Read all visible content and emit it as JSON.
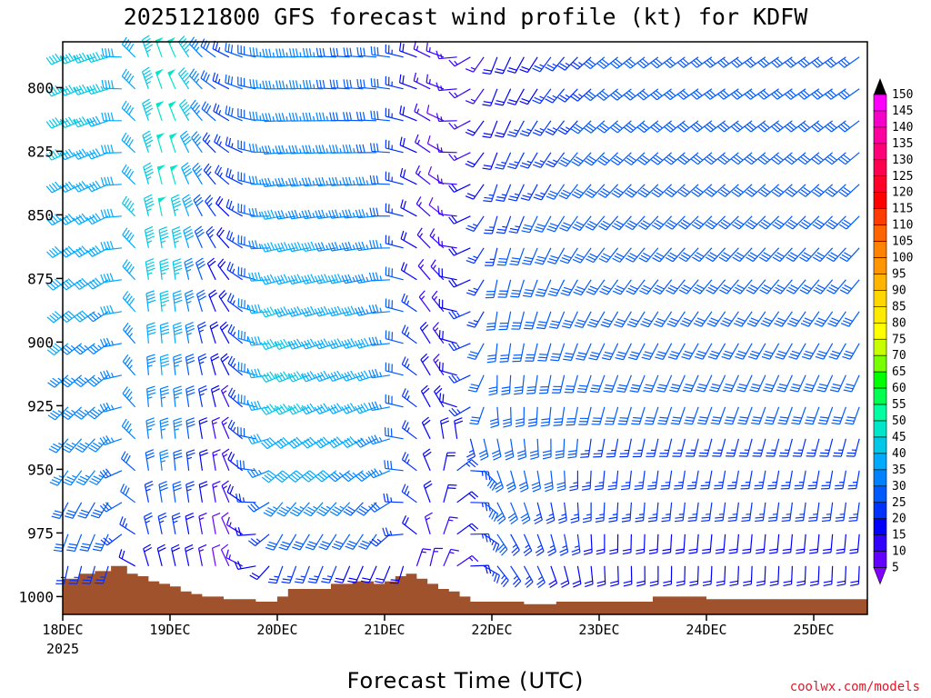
{
  "chart_data": {
    "type": "wind-barb-profile",
    "title": "2025121800 GFS forecast wind profile (kt) for KDFW",
    "xlabel": "Forecast Time (UTC)",
    "ylabel": "",
    "credit": "coolwx.com/models",
    "y_ticks": [
      "800",
      "825",
      "850",
      "875",
      "900",
      "925",
      "950",
      "975",
      "1000"
    ],
    "y_tick_values": [
      800,
      825,
      850,
      875,
      900,
      925,
      950,
      975,
      1000
    ],
    "ylim": [
      782,
      1007
    ],
    "x_ticks": [
      "18DEC",
      "19DEC",
      "20DEC",
      "21DEC",
      "22DEC",
      "23DEC",
      "24DEC",
      "25DEC"
    ],
    "x_year": "2025",
    "xlim_days": [
      0,
      7.5
    ],
    "colorbar_labels": [
      "150",
      "145",
      "140",
      "135",
      "130",
      "125",
      "120",
      "115",
      "110",
      "105",
      "100",
      "95",
      "90",
      "85",
      "80",
      "75",
      "70",
      "65",
      "60",
      "55",
      "50",
      "45",
      "40",
      "35",
      "30",
      "25",
      "20",
      "15",
      "10",
      "5"
    ],
    "colorbar_colors": [
      "#ff00ff",
      "#f500c8",
      "#ff00a0",
      "#ff0078",
      "#ff0050",
      "#ff0028",
      "#ff0000",
      "#ff3c00",
      "#ff6400",
      "#ff8200",
      "#ff9600",
      "#ffb400",
      "#ffd700",
      "#ffeb00",
      "#ffff00",
      "#c8ff00",
      "#78ff00",
      "#00ff00",
      "#00ff50",
      "#00ffa0",
      "#00e6c8",
      "#00c8e6",
      "#00aaff",
      "#0082ff",
      "#005aff",
      "#0032ff",
      "#0000ff",
      "#3200ff",
      "#6400ff",
      "#8200ff"
    ],
    "terrain_color": "#a0522d",
    "terrain_top_hpa": [
      [
        0.0,
        993
      ],
      [
        0.15,
        991
      ],
      [
        0.3,
        990
      ],
      [
        0.45,
        988
      ],
      [
        0.5,
        988
      ],
      [
        0.6,
        991
      ],
      [
        0.7,
        992
      ],
      [
        0.8,
        994
      ],
      [
        0.9,
        995
      ],
      [
        1.0,
        996
      ],
      [
        1.1,
        998
      ],
      [
        1.2,
        999
      ],
      [
        1.3,
        1000
      ],
      [
        1.5,
        1001
      ],
      [
        1.7,
        1001
      ],
      [
        1.8,
        1002
      ],
      [
        1.9,
        1002
      ],
      [
        2.0,
        1000
      ],
      [
        2.1,
        997
      ],
      [
        2.3,
        997
      ],
      [
        2.5,
        995
      ],
      [
        2.7,
        994
      ],
      [
        2.8,
        994
      ],
      [
        2.9,
        995
      ],
      [
        3.0,
        994
      ],
      [
        3.1,
        992
      ],
      [
        3.2,
        991
      ],
      [
        3.3,
        993
      ],
      [
        3.4,
        995
      ],
      [
        3.5,
        997
      ],
      [
        3.6,
        998
      ],
      [
        3.7,
        1000
      ],
      [
        3.8,
        1002
      ],
      [
        3.9,
        1002
      ],
      [
        4.0,
        1002
      ],
      [
        4.1,
        1002
      ],
      [
        4.3,
        1003
      ],
      [
        4.5,
        1003
      ],
      [
        4.6,
        1002
      ],
      [
        4.8,
        1002
      ],
      [
        5.0,
        1002
      ],
      [
        5.2,
        1002
      ],
      [
        5.4,
        1002
      ],
      [
        5.5,
        1000
      ],
      [
        5.8,
        1000
      ],
      [
        6.0,
        1001
      ],
      [
        6.2,
        1001
      ],
      [
        6.5,
        1001
      ],
      [
        7.0,
        1001
      ],
      [
        7.5,
        1000
      ]
    ],
    "wind_profile": [
      {
        "t": 0.0,
        "speed": [
          45,
          43,
          41,
          40,
          38,
          37,
          35,
          30,
          25
        ],
        "dir": [
          245,
          245,
          240,
          235,
          230,
          225,
          215,
          200,
          185
        ]
      },
      {
        "t": 0.5,
        "speed": [
          43,
          41,
          40,
          38,
          36,
          35,
          33,
          28,
          22
        ],
        "dir": [
          255,
          250,
          245,
          240,
          235,
          230,
          220,
          205,
          190
        ]
      },
      {
        "t": 0.75,
        "speed": [
          40,
          42,
          44,
          42,
          38,
          34,
          30,
          24,
          18
        ],
        "dir": [
          340,
          340,
          345,
          350,
          355,
          355,
          350,
          345,
          340
        ]
      },
      {
        "t": 1.0,
        "speed": [
          55,
          52,
          50,
          46,
          42,
          38,
          34,
          26,
          20
        ],
        "dir": [
          340,
          345,
          350,
          355,
          355,
          355,
          355,
          350,
          345
        ]
      },
      {
        "t": 1.5,
        "speed": [
          25,
          22,
          20,
          18,
          16,
          14,
          12,
          10,
          8
        ],
        "dir": [
          300,
          310,
          320,
          330,
          340,
          345,
          350,
          350,
          350
        ]
      },
      {
        "t": 2.0,
        "speed": [
          35,
          36,
          38,
          42,
          44,
          45,
          40,
          30,
          18
        ],
        "dir": [
          270,
          265,
          260,
          255,
          250,
          245,
          230,
          210,
          190
        ]
      },
      {
        "t": 3.0,
        "speed": [
          30,
          32,
          34,
          36,
          38,
          38,
          36,
          28,
          16
        ],
        "dir": [
          275,
          270,
          265,
          260,
          255,
          250,
          235,
          215,
          195
        ]
      },
      {
        "t": 3.5,
        "speed": [
          12,
          10,
          10,
          12,
          14,
          16,
          18,
          15,
          10
        ],
        "dir": [
          300,
          310,
          320,
          330,
          340,
          345,
          355,
          5,
          15
        ]
      },
      {
        "t": 4.0,
        "speed": [
          18,
          22,
          26,
          28,
          30,
          32,
          32,
          28,
          22
        ],
        "dir": [
          200,
          200,
          195,
          190,
          185,
          175,
          160,
          145,
          135
        ]
      },
      {
        "t": 5.0,
        "speed": [
          28,
          30,
          30,
          30,
          30,
          28,
          26,
          22,
          18
        ],
        "dir": [
          230,
          225,
          220,
          215,
          205,
          195,
          185,
          180,
          175
        ]
      },
      {
        "t": 6.0,
        "speed": [
          30,
          30,
          30,
          30,
          30,
          28,
          26,
          22,
          18
        ],
        "dir": [
          235,
          230,
          225,
          220,
          210,
          200,
          190,
          185,
          180
        ]
      },
      {
        "t": 7.5,
        "speed": [
          32,
          30,
          30,
          30,
          30,
          28,
          26,
          22,
          20
        ],
        "dir": [
          235,
          230,
          225,
          220,
          210,
          200,
          190,
          185,
          180
        ]
      }
    ]
  }
}
